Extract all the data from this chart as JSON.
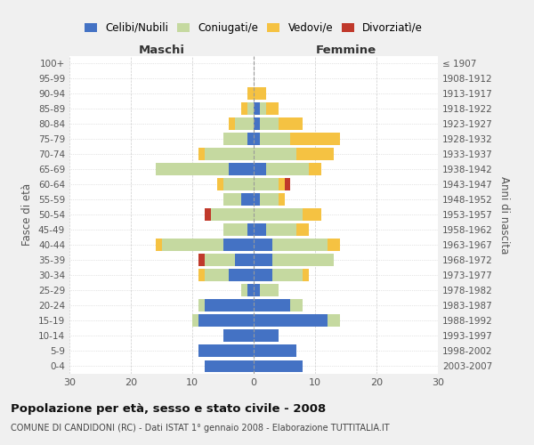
{
  "age_groups": [
    "0-4",
    "5-9",
    "10-14",
    "15-19",
    "20-24",
    "25-29",
    "30-34",
    "35-39",
    "40-44",
    "45-49",
    "50-54",
    "55-59",
    "60-64",
    "65-69",
    "70-74",
    "75-79",
    "80-84",
    "85-89",
    "90-94",
    "95-99",
    "100+"
  ],
  "birth_years": [
    "2003-2007",
    "1998-2002",
    "1993-1997",
    "1988-1992",
    "1983-1987",
    "1978-1982",
    "1973-1977",
    "1968-1972",
    "1963-1967",
    "1958-1962",
    "1953-1957",
    "1948-1952",
    "1943-1947",
    "1938-1942",
    "1933-1937",
    "1928-1932",
    "1923-1927",
    "1918-1922",
    "1913-1917",
    "1908-1912",
    "≤ 1907"
  ],
  "male_celibe": [
    8,
    9,
    5,
    9,
    8,
    1,
    4,
    3,
    5,
    1,
    0,
    2,
    0,
    4,
    0,
    1,
    0,
    0,
    0,
    0,
    0
  ],
  "male_coniugato": [
    0,
    0,
    0,
    1,
    1,
    1,
    4,
    5,
    10,
    4,
    7,
    3,
    5,
    12,
    8,
    4,
    3,
    1,
    0,
    0,
    0
  ],
  "male_vedovo": [
    0,
    0,
    0,
    0,
    0,
    0,
    1,
    0,
    1,
    0,
    0,
    0,
    1,
    0,
    1,
    0,
    1,
    1,
    1,
    0,
    0
  ],
  "male_divorziato": [
    0,
    0,
    0,
    0,
    0,
    0,
    0,
    1,
    0,
    0,
    1,
    0,
    0,
    0,
    0,
    0,
    0,
    0,
    0,
    0,
    0
  ],
  "female_celibe": [
    8,
    7,
    4,
    12,
    6,
    1,
    3,
    3,
    3,
    2,
    0,
    1,
    0,
    2,
    0,
    1,
    1,
    1,
    0,
    0,
    0
  ],
  "female_coniugato": [
    0,
    0,
    0,
    2,
    2,
    3,
    5,
    10,
    9,
    5,
    8,
    3,
    4,
    7,
    7,
    5,
    3,
    1,
    0,
    0,
    0
  ],
  "female_vedovo": [
    0,
    0,
    0,
    0,
    0,
    0,
    1,
    0,
    2,
    2,
    3,
    1,
    1,
    2,
    6,
    8,
    4,
    2,
    2,
    0,
    0
  ],
  "female_divorziato": [
    0,
    0,
    0,
    0,
    0,
    0,
    0,
    0,
    0,
    0,
    0,
    0,
    1,
    0,
    0,
    0,
    0,
    0,
    0,
    0,
    0
  ],
  "color_celibe": "#4472c4",
  "color_coniugato": "#c5d9a0",
  "color_vedovo": "#f5c242",
  "color_divorziato": "#c0392b",
  "title": "Popolazione per età, sesso e stato civile - 2008",
  "subtitle": "COMUNE DI CANDIDONI (RC) - Dati ISTAT 1° gennaio 2008 - Elaborazione TUTTITALIA.IT",
  "xlabel_left": "Maschi",
  "xlabel_right": "Femmine",
  "ylabel_left": "Fasce di età",
  "ylabel_right": "Anni di nascita",
  "xlim": 30,
  "bg_color": "#f0f0f0",
  "plot_bg_color": "#ffffff"
}
